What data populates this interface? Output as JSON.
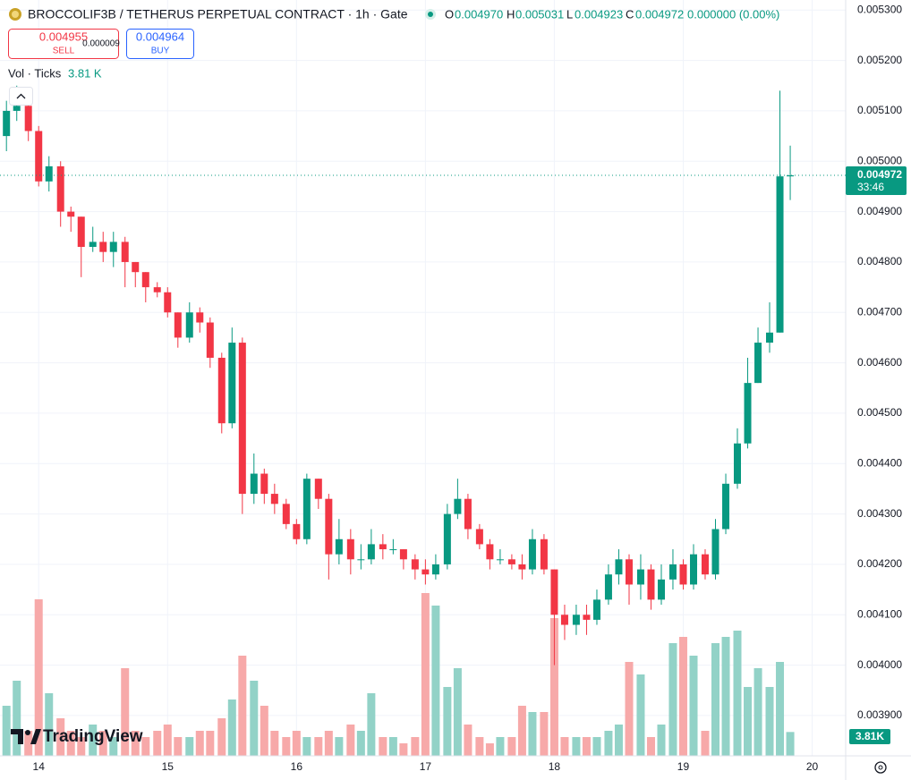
{
  "chart_data": {
    "type": "candlestick",
    "header": {
      "symbol": "BROCCOLIF3B / TETHERUS PERPETUAL CONTRACT · 1h · Gate",
      "o_label": "O",
      "o": "0.004970",
      "h_label": "H",
      "h": "0.005031",
      "l_label": "L",
      "l": "0.004923",
      "c_label": "C",
      "c": "0.004972",
      "change": "0.000000 (0.00%)"
    },
    "trade": {
      "sell_price": "0.004955",
      "sell_label": "SELL",
      "spread": "0.000009",
      "buy_price": "0.004964",
      "buy_label": "BUY"
    },
    "volume_legend": {
      "label": "Vol · Ticks",
      "value": "3.81 K"
    },
    "volume_axis_label": "3.81K",
    "last_price": {
      "value": 0.004972,
      "label": "0.004972"
    },
    "countdown": "33:46",
    "brand": "TradingView",
    "colors": {
      "up": "#089981",
      "down": "#f23645",
      "up_volume": "#92d2c7",
      "down_volume": "#f7a9a9"
    },
    "grid": true,
    "xlim": [
      13.7,
      20.26
    ],
    "xticks": [
      14,
      15,
      16,
      17,
      18,
      19,
      20
    ],
    "ylim": [
      0.00382,
      0.00532
    ],
    "yticks": [
      {
        "value": 0.0039,
        "label": "0.003900"
      },
      {
        "value": 0.004,
        "label": "0.004000"
      },
      {
        "value": 0.0041,
        "label": "0.004100"
      },
      {
        "value": 0.0042,
        "label": "0.004200"
      },
      {
        "value": 0.0043,
        "label": "0.004300"
      },
      {
        "value": 0.0044,
        "label": "0.004400"
      },
      {
        "value": 0.0045,
        "label": "0.004500"
      },
      {
        "value": 0.0046,
        "label": "0.004600"
      },
      {
        "value": 0.0047,
        "label": "0.004700"
      },
      {
        "value": 0.0048,
        "label": "0.004800"
      },
      {
        "value": 0.0049,
        "label": "0.004900"
      },
      {
        "value": 0.005,
        "label": "0.005000"
      },
      {
        "value": 0.0051,
        "label": "0.005100"
      },
      {
        "value": 0.0052,
        "label": "0.005200"
      },
      {
        "value": 0.0053,
        "label": "0.005300"
      }
    ],
    "x": [
      13.75,
      13.83,
      13.92,
      14,
      14.08,
      14.17,
      14.25,
      14.33,
      14.42,
      14.5,
      14.58,
      14.67,
      14.75,
      14.83,
      14.92,
      15,
      15.08,
      15.17,
      15.25,
      15.33,
      15.42,
      15.5,
      15.58,
      15.67,
      15.75,
      15.83,
      15.92,
      16,
      16.08,
      16.17,
      16.25,
      16.33,
      16.42,
      16.5,
      16.58,
      16.67,
      16.75,
      16.83,
      16.92,
      17,
      17.08,
      17.17,
      17.25,
      17.33,
      17.42,
      17.5,
      17.58,
      17.67,
      17.75,
      17.83,
      17.92,
      18,
      18.08,
      18.17,
      18.25,
      18.33,
      18.42,
      18.5,
      18.58,
      18.67,
      18.75,
      18.83,
      18.92,
      19,
      19.08,
      19.17,
      19.25,
      19.33,
      19.42,
      19.5,
      19.58,
      19.67,
      19.75,
      19.83
    ],
    "open": [
      0.00505,
      0.0051,
      0.00511,
      0.00506,
      0.00496,
      0.00499,
      0.0049,
      0.00489,
      0.00483,
      0.00484,
      0.00482,
      0.00484,
      0.0048,
      0.00478,
      0.00475,
      0.00474,
      0.0047,
      0.00465,
      0.0047,
      0.00468,
      0.00461,
      0.00448,
      0.00464,
      0.00434,
      0.00438,
      0.00434,
      0.00432,
      0.00428,
      0.00425,
      0.00437,
      0.00433,
      0.00422,
      0.00425,
      0.00421,
      0.00421,
      0.00424,
      0.00423,
      0.00423,
      0.00421,
      0.00419,
      0.00418,
      0.0042,
      0.0043,
      0.00433,
      0.00427,
      0.00424,
      0.00421,
      0.00421,
      0.0042,
      0.00419,
      0.00425,
      0.00419,
      0.0041,
      0.00408,
      0.0041,
      0.00409,
      0.00413,
      0.00418,
      0.00421,
      0.00416,
      0.00419,
      0.00413,
      0.00417,
      0.0042,
      0.00416,
      0.00422,
      0.00418,
      0.00427,
      0.00436,
      0.00444,
      0.00456,
      0.00464,
      0.00466,
      0.00497
    ],
    "high": [
      0.00512,
      0.00515,
      0.00512,
      0.00507,
      0.00501,
      0.005,
      0.00491,
      0.00489,
      0.00487,
      0.00486,
      0.00486,
      0.00485,
      0.0048,
      0.00478,
      0.00476,
      0.00475,
      0.0047,
      0.00472,
      0.00471,
      0.00469,
      0.00462,
      0.00467,
      0.00465,
      0.00442,
      0.00439,
      0.00436,
      0.00433,
      0.00429,
      0.00438,
      0.00437,
      0.00434,
      0.00429,
      0.00427,
      0.00424,
      0.00427,
      0.00426,
      0.00425,
      0.00423,
      0.00422,
      0.00421,
      0.00422,
      0.00432,
      0.00437,
      0.00434,
      0.00428,
      0.00425,
      0.00423,
      0.00422,
      0.00422,
      0.00427,
      0.00426,
      0.00419,
      0.00412,
      0.00412,
      0.00412,
      0.00415,
      0.0042,
      0.00423,
      0.00422,
      0.00422,
      0.0042,
      0.0042,
      0.00423,
      0.00421,
      0.00424,
      0.00423,
      0.00429,
      0.00438,
      0.00447,
      0.00461,
      0.00467,
      0.00472,
      0.00514,
      0.005031
    ],
    "low": [
      0.00502,
      0.00508,
      0.00504,
      0.00495,
      0.00494,
      0.00487,
      0.00486,
      0.00477,
      0.00482,
      0.0048,
      0.00479,
      0.00475,
      0.00475,
      0.00472,
      0.00473,
      0.00469,
      0.00463,
      0.00464,
      0.00466,
      0.00459,
      0.00446,
      0.00447,
      0.0043,
      0.00432,
      0.00432,
      0.0043,
      0.00427,
      0.00424,
      0.00424,
      0.00431,
      0.00417,
      0.0042,
      0.00418,
      0.00419,
      0.0042,
      0.00421,
      0.00422,
      0.00419,
      0.00417,
      0.00416,
      0.00417,
      0.00419,
      0.00429,
      0.00425,
      0.00423,
      0.00419,
      0.0042,
      0.00419,
      0.00417,
      0.00418,
      0.00418,
      0.004,
      0.00405,
      0.00406,
      0.00406,
      0.00408,
      0.00412,
      0.00416,
      0.00412,
      0.00413,
      0.00411,
      0.00412,
      0.00415,
      0.00415,
      0.00415,
      0.00417,
      0.00417,
      0.00426,
      0.00435,
      0.00443,
      0.00456,
      0.00462,
      0.00466,
      0.004923
    ],
    "close": [
      0.0051,
      0.00511,
      0.00506,
      0.00496,
      0.00499,
      0.0049,
      0.00489,
      0.00483,
      0.00484,
      0.00482,
      0.00484,
      0.0048,
      0.00478,
      0.00475,
      0.00474,
      0.0047,
      0.00465,
      0.0047,
      0.00468,
      0.00461,
      0.00448,
      0.00464,
      0.00434,
      0.00438,
      0.00434,
      0.00432,
      0.00428,
      0.00425,
      0.00437,
      0.00433,
      0.00422,
      0.00425,
      0.00421,
      0.00421,
      0.00424,
      0.00423,
      0.00423,
      0.00421,
      0.00419,
      0.00418,
      0.0042,
      0.0043,
      0.00433,
      0.00427,
      0.00424,
      0.00421,
      0.00421,
      0.0042,
      0.00419,
      0.00425,
      0.00419,
      0.0041,
      0.00408,
      0.0041,
      0.00409,
      0.00413,
      0.00418,
      0.00421,
      0.00416,
      0.00419,
      0.00413,
      0.00417,
      0.0042,
      0.00416,
      0.00422,
      0.00418,
      0.00427,
      0.00436,
      0.00444,
      0.00456,
      0.00464,
      0.00466,
      0.00497,
      0.004972
    ],
    "volume": [
      8,
      12,
      4,
      25,
      10,
      6,
      4,
      3,
      5,
      4,
      3,
      14,
      4,
      3,
      4,
      5,
      3,
      3,
      4,
      4,
      6,
      9,
      16,
      12,
      8,
      4,
      3,
      4,
      3,
      3,
      4,
      3,
      5,
      4,
      10,
      3,
      3,
      2,
      3,
      26,
      24,
      11,
      14,
      5,
      3,
      2,
      3,
      3,
      8,
      7,
      7,
      22,
      3,
      3,
      3,
      3,
      4,
      5,
      15,
      13,
      3,
      5,
      18,
      19,
      16,
      4,
      18,
      19,
      20,
      11,
      14,
      11,
      15,
      3.81
    ]
  }
}
